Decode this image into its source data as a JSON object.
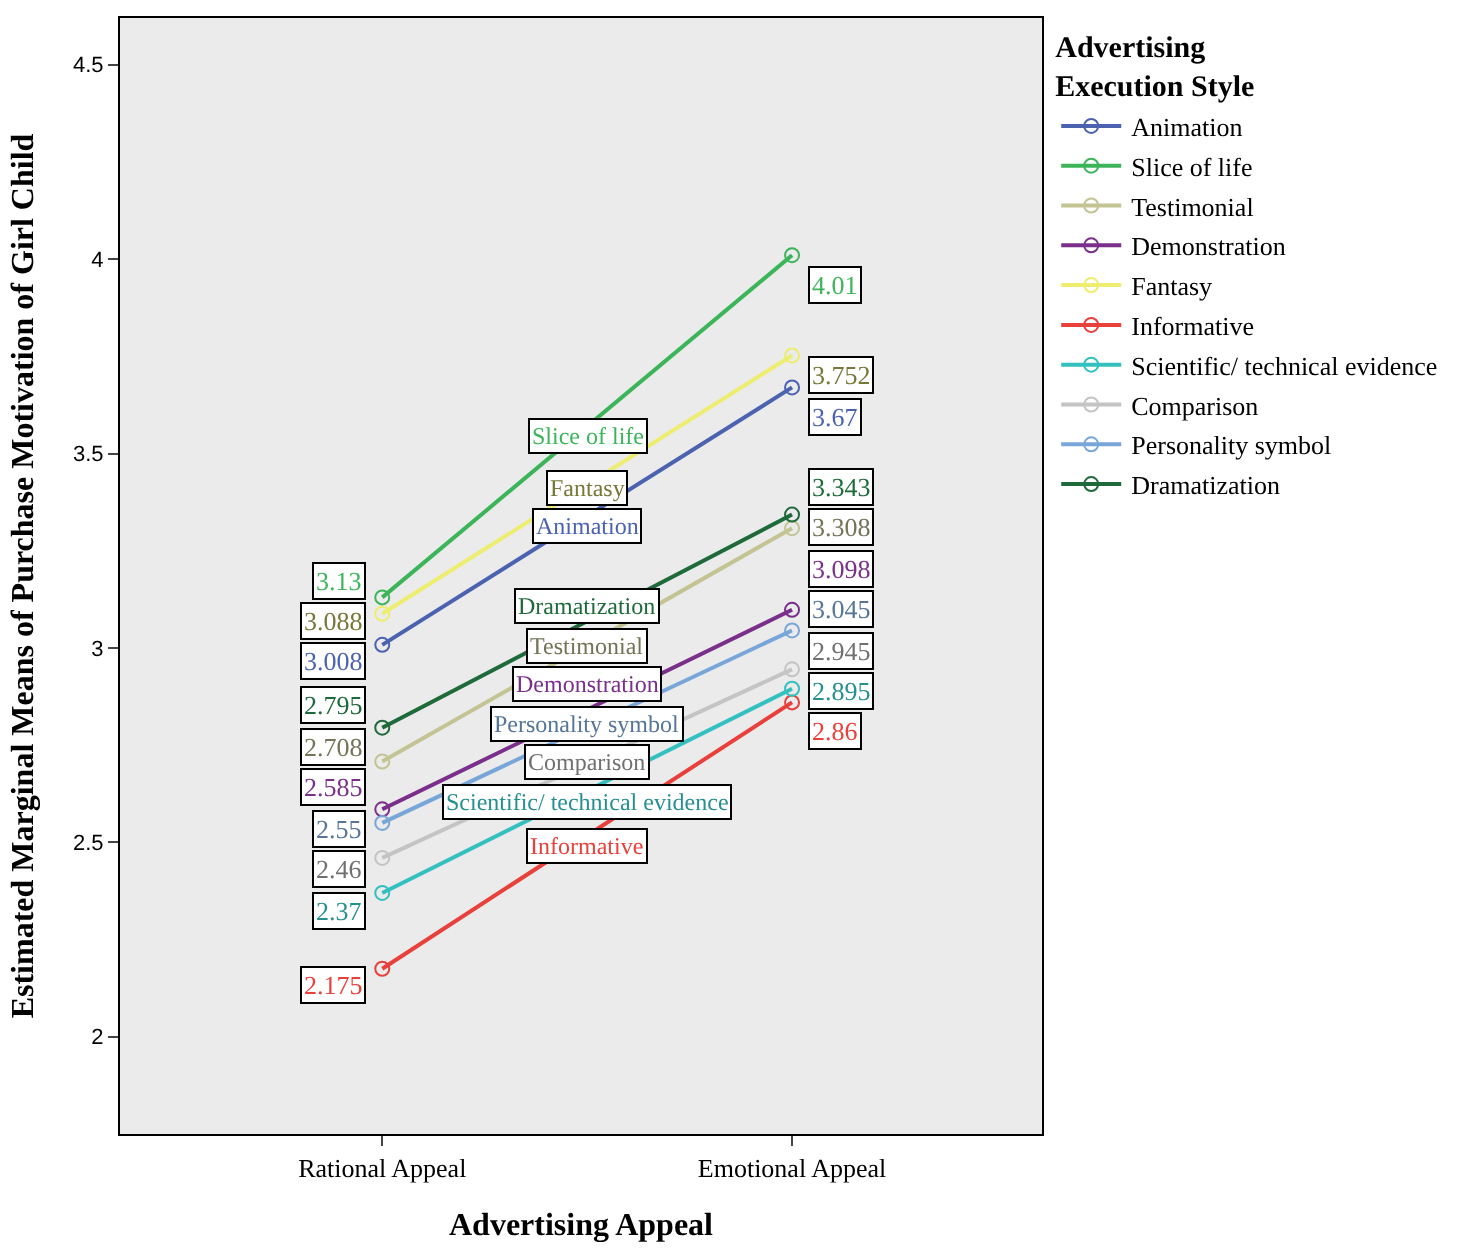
{
  "chart_data": {
    "type": "line",
    "xlabel": "Advertising Appeal",
    "ylabel": "Estimated Marginal Means of Purchase Motivation of Girl Child",
    "legend_title": "Advertising Execution Style",
    "categories": [
      "Rational Appeal",
      "Emotional Appeal"
    ],
    "ylim": [
      1.75,
      4.62
    ],
    "yticks": [
      2,
      2.5,
      3,
      3.5,
      4,
      4.5
    ],
    "grid": false,
    "legend": "right",
    "marker": "circle",
    "line_style": "solid",
    "data_labels": true,
    "series": [
      {
        "name": "Animation",
        "color": "#4a62b0",
        "values": [
          3.008,
          3.67
        ]
      },
      {
        "name": "Slice of life",
        "color": "#3cb45a",
        "values": [
          3.13,
          4.01
        ]
      },
      {
        "name": "Testimonial",
        "color": "#c3c394",
        "values": [
          2.708,
          3.308
        ]
      },
      {
        "name": "Demonstration",
        "color": "#7a2f8a",
        "values": [
          2.585,
          3.098
        ]
      },
      {
        "name": "Fantasy",
        "color": "#eded70",
        "values": [
          3.088,
          3.752
        ]
      },
      {
        "name": "Informative",
        "color": "#e8413c",
        "values": [
          2.175,
          2.86
        ]
      },
      {
        "name": "Scientific/ technical evidence",
        "color": "#35c0c0",
        "values": [
          2.37,
          2.895
        ]
      },
      {
        "name": "Comparison",
        "color": "#c4c4c4",
        "values": [
          2.46,
          2.945
        ]
      },
      {
        "name": "Personality symbol",
        "color": "#78a6d8",
        "values": [
          2.55,
          3.045
        ]
      },
      {
        "name": "Dramatization",
        "color": "#1e6a3a",
        "values": [
          2.795,
          3.343
        ]
      }
    ]
  }
}
